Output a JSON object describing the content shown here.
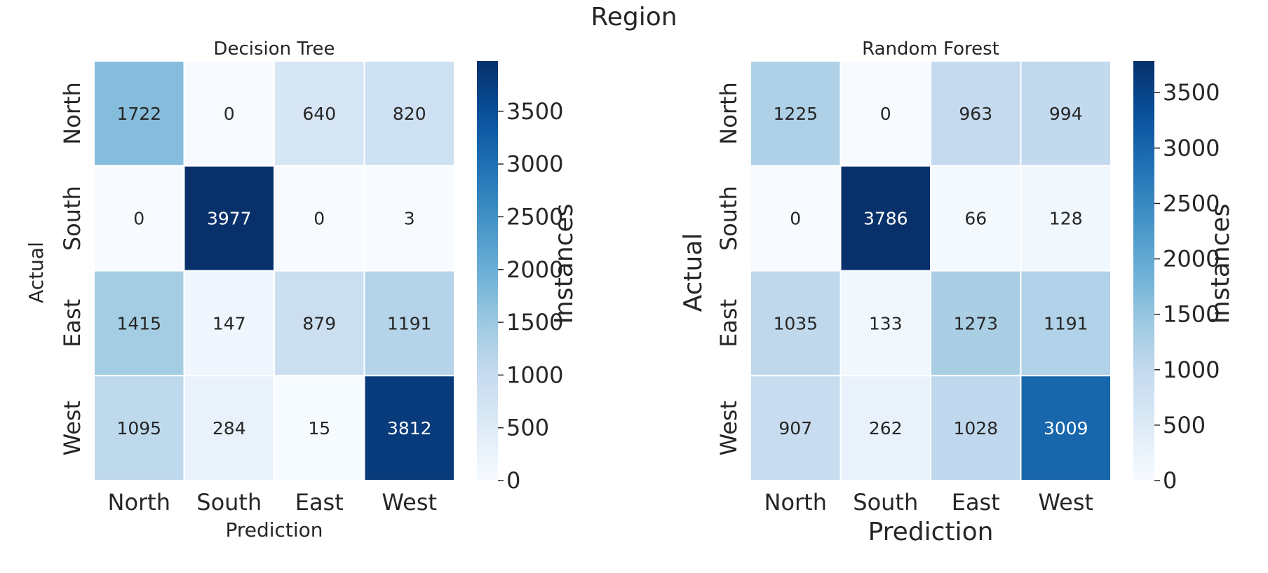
{
  "figure": {
    "suptitle": "Region"
  },
  "chart_data": [
    {
      "type": "heatmap",
      "title": "Decision Tree",
      "xlabel": "Prediction",
      "ylabel": "Actual",
      "x_categories": [
        "North",
        "South",
        "East",
        "West"
      ],
      "y_categories": [
        "North",
        "South",
        "East",
        "West"
      ],
      "values": [
        [
          1722,
          0,
          640,
          820
        ],
        [
          0,
          3977,
          0,
          3
        ],
        [
          1415,
          147,
          879,
          1191
        ],
        [
          1095,
          284,
          15,
          3812
        ]
      ],
      "colorbar": {
        "label": "Instances",
        "vmin": 0,
        "vmax": 3977,
        "ticks": [
          0,
          500,
          1000,
          1500,
          2000,
          2500,
          3000,
          3500
        ]
      },
      "colormap": "Blues"
    },
    {
      "type": "heatmap",
      "title": "Random Forest",
      "xlabel": "Prediction",
      "ylabel": "Actual",
      "x_categories": [
        "North",
        "South",
        "East",
        "West"
      ],
      "y_categories": [
        "North",
        "South",
        "East",
        "West"
      ],
      "values": [
        [
          1225,
          0,
          963,
          994
        ],
        [
          0,
          3786,
          66,
          128
        ],
        [
          1035,
          133,
          1273,
          1191
        ],
        [
          907,
          262,
          1028,
          3009
        ]
      ],
      "colorbar": {
        "label": "Instances",
        "vmin": 0,
        "vmax": 3786,
        "ticks": [
          0,
          500,
          1000,
          1500,
          2000,
          2500,
          3000,
          3500
        ]
      },
      "colormap": "Blues"
    }
  ]
}
